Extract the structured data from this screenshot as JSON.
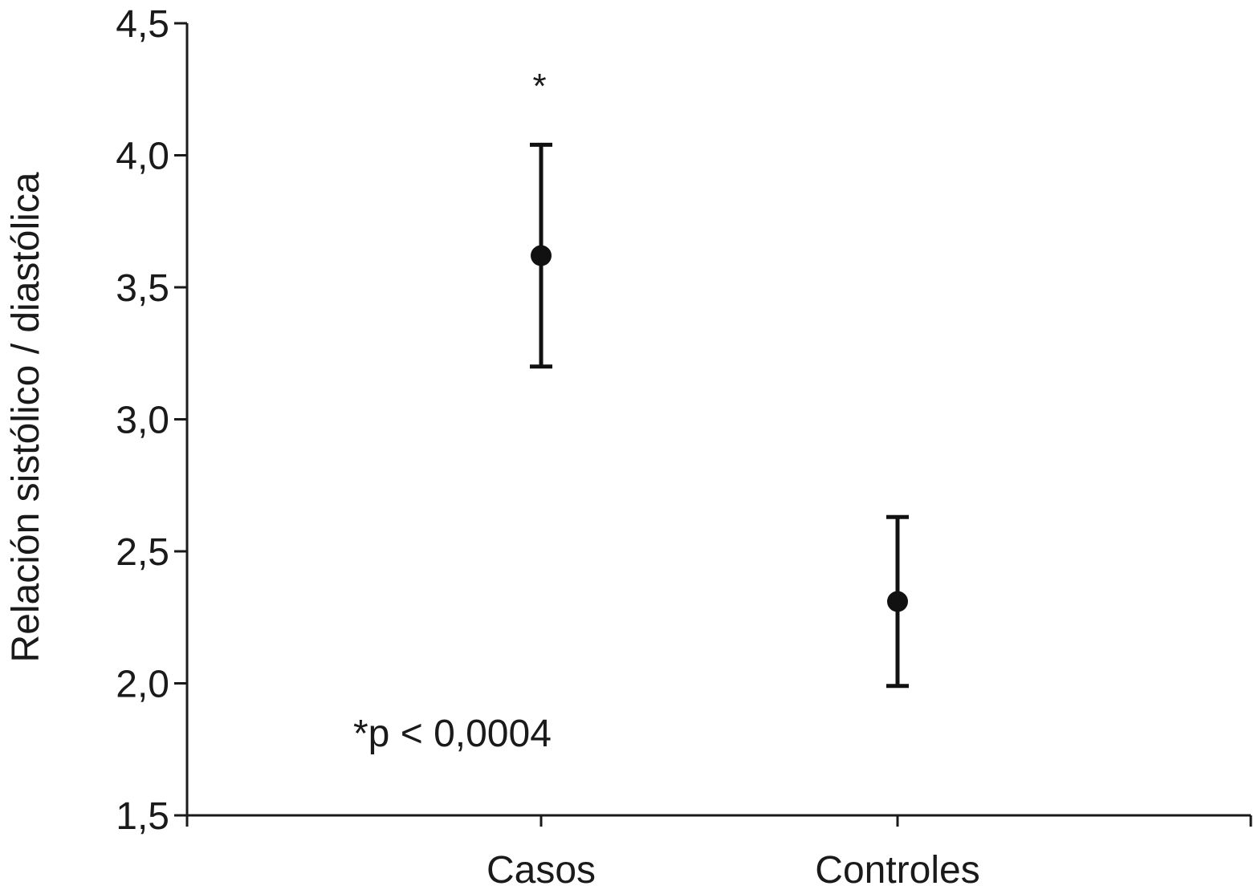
{
  "chart_data": {
    "type": "scatter",
    "title": "",
    "xlabel": "",
    "ylabel": "Relación sistólico / diastólica",
    "ylim": [
      1.5,
      4.5
    ],
    "yticks": [
      1.5,
      2.0,
      2.5,
      3.0,
      3.5,
      4.0,
      4.5
    ],
    "ytick_labels": [
      "1,5",
      "2,0",
      "2,5",
      "3,0",
      "3,5",
      "4,0",
      "4,5"
    ],
    "categories": [
      "Casos",
      "Controles"
    ],
    "series": [
      {
        "values": [
          3.62,
          2.31
        ],
        "error_low": [
          3.2,
          1.99
        ],
        "error_high": [
          4.04,
          2.63
        ]
      }
    ],
    "annotations": {
      "significance_mark": "*",
      "p_value_text": "*p < 0,0004"
    },
    "grid": false,
    "legend": "none",
    "colors": {
      "marker": "#111111",
      "axis": "#1a1a1a"
    }
  }
}
